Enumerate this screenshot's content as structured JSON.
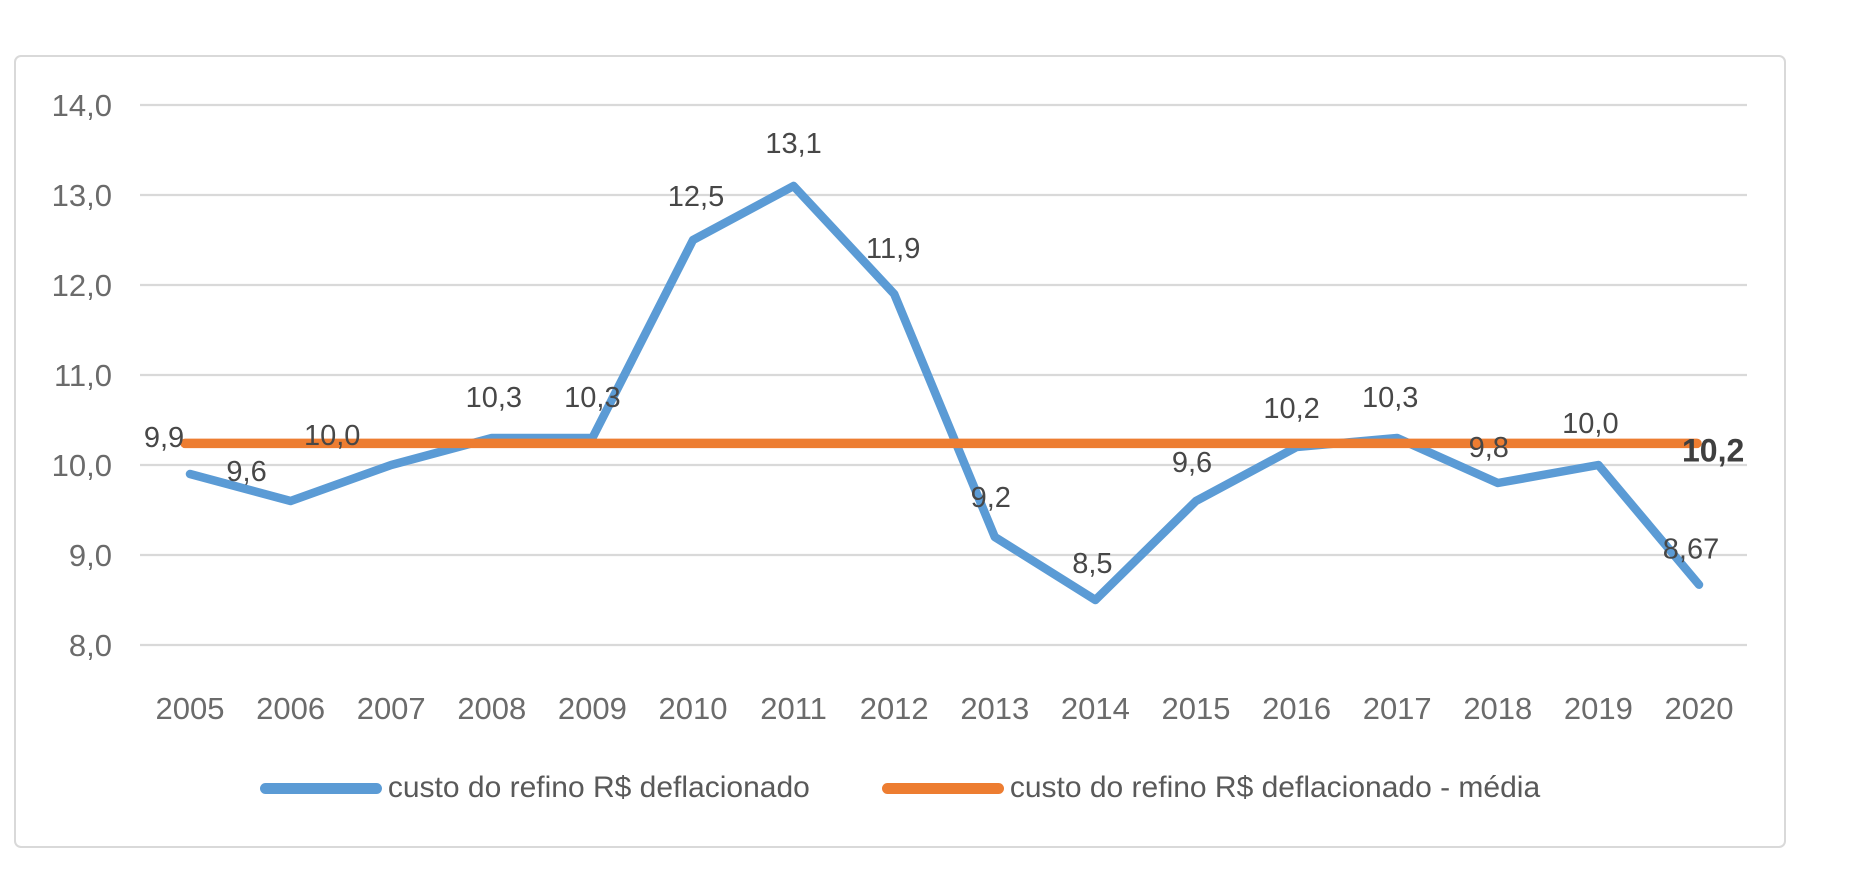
{
  "chart": {
    "background_color": "#FFFFFF",
    "frame_border_color": "#D9D9D9",
    "gridline_color": "#D9D9D9",
    "axis_text_color": "#6B6B6B",
    "data_label_color": "#474747",
    "mean_label_color": "#3F3F3F",
    "legend_text_color": "#595959"
  },
  "chart_data": {
    "type": "line",
    "categories": [
      "2005",
      "2006",
      "2007",
      "2008",
      "2009",
      "2010",
      "2011",
      "2012",
      "2013",
      "2014",
      "2015",
      "2016",
      "2017",
      "2018",
      "2019",
      "2020"
    ],
    "series": [
      {
        "name": "custo do refino R$ deflacionado",
        "color": "#5B9BD5",
        "values": [
          9.9,
          9.6,
          10.0,
          10.3,
          10.3,
          12.5,
          13.1,
          11.9,
          9.2,
          8.5,
          9.6,
          10.2,
          10.3,
          9.8,
          10.0,
          8.67
        ],
        "data_labels": [
          "9,9",
          "9,6",
          "10,0",
          "10,3",
          "10,3",
          "12,5",
          "13,1",
          "11,9",
          "9,2",
          "8,5",
          "9,6",
          "10,2",
          "10,3",
          "9,8",
          "10,0",
          "8,67"
        ]
      },
      {
        "name": "custo do refino R$ deflacionado - média",
        "color": "#ED7D31",
        "type": "constant",
        "value": 10.24,
        "end_label": "10,2"
      }
    ],
    "ylim": [
      8.0,
      14.0
    ],
    "ytick_step": 1.0,
    "ytick_labels": [
      "8,0",
      "9,0",
      "10,0",
      "11,0",
      "12,0",
      "13,0",
      "14,0"
    ],
    "grid": true,
    "legend_position": "bottom"
  }
}
